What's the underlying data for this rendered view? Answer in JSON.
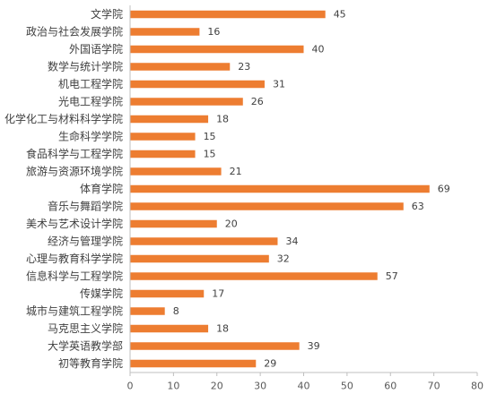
{
  "chart_data": {
    "type": "bar",
    "orientation": "horizontal",
    "categories": [
      "文学院",
      "政治与社会发展学院",
      "外国语学院",
      "数学与统计学院",
      "机电工程学院",
      "光电工程学院",
      "化学化工与材料科学学院",
      "生命科学学院",
      "食品科学与工程学院",
      "旅游与资源环境学院",
      "体育学院",
      "音乐与舞蹈学院",
      "美术与艺术设计学院",
      "经济与管理学院",
      "心理与教育科学学院",
      "信息科学与工程学院",
      "传媒学院",
      "城市与建筑工程学院",
      "马克思主义学院",
      "大学英语教学部",
      "初等教育学院"
    ],
    "values": [
      45,
      16,
      40,
      23,
      31,
      26,
      18,
      15,
      15,
      21,
      69,
      63,
      20,
      34,
      32,
      57,
      17,
      8,
      18,
      39,
      29
    ],
    "xlim": [
      0,
      80
    ],
    "xticks": [
      0,
      10,
      20,
      30,
      40,
      50,
      60,
      70,
      80
    ],
    "bar_color": "#ED7D31",
    "grid": false,
    "legend": "none",
    "data_labels": true
  }
}
